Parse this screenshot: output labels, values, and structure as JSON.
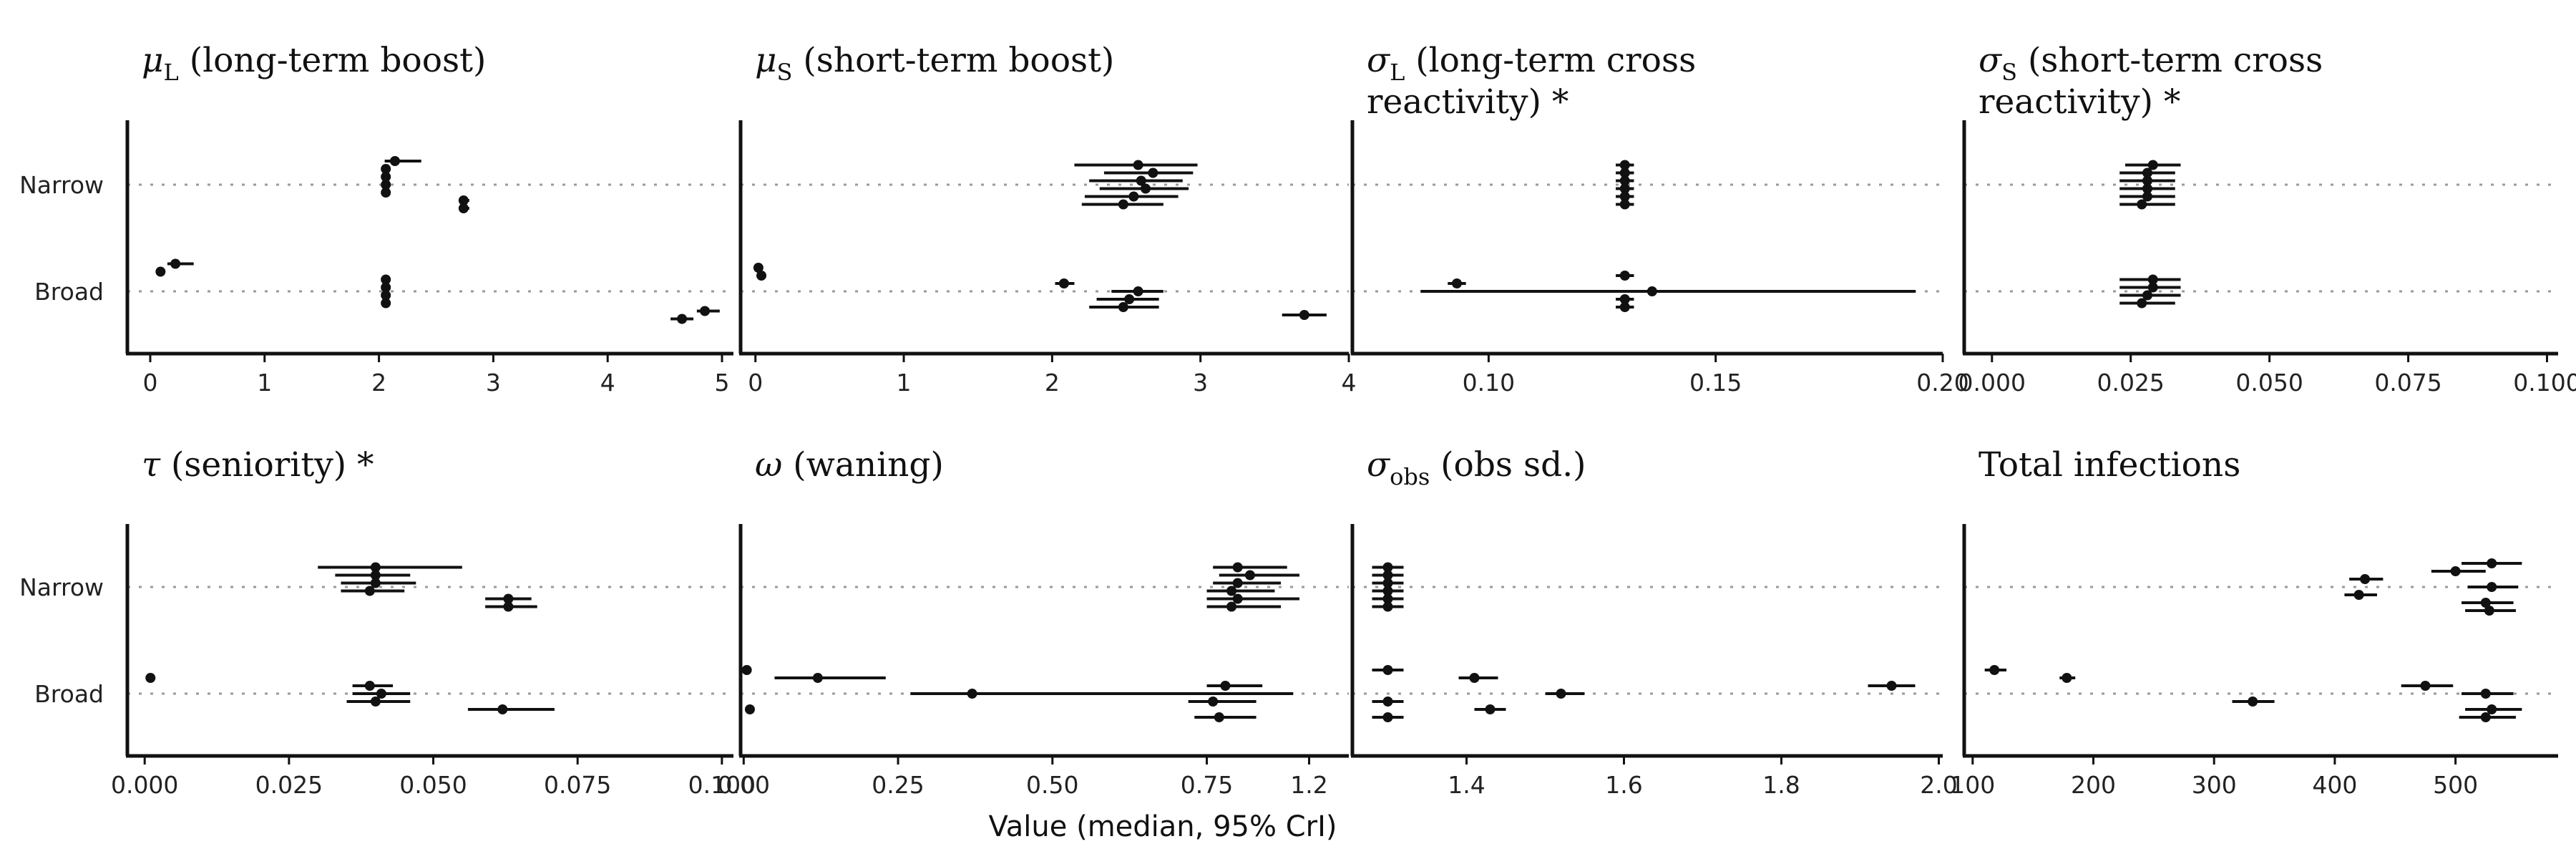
{
  "figure": {
    "xlabel": "Value (median, 95% CrI)",
    "categories": [
      "Narrow",
      "Broad"
    ]
  },
  "chart_data": [
    {
      "type": "scatter",
      "title_main": "μ",
      "title_sub": "L",
      "title_rest": " (long-term boost)",
      "title_rest2": "",
      "xlim": [
        -0.2,
        5.1
      ],
      "xticks": [
        "0",
        "1",
        "2",
        "3",
        "4",
        "5"
      ],
      "xtick_values": [
        0,
        1,
        2,
        3,
        4,
        5
      ],
      "points": [
        {
          "group": "Narrow",
          "median": 2.14,
          "lower": 2.05,
          "upper": 2.37
        },
        {
          "group": "Narrow",
          "median": 2.06,
          "lower": 2.04,
          "upper": 2.1
        },
        {
          "group": "Narrow",
          "median": 2.06,
          "lower": 2.04,
          "upper": 2.1
        },
        {
          "group": "Narrow",
          "median": 2.06,
          "lower": 2.04,
          "upper": 2.09
        },
        {
          "group": "Narrow",
          "median": 2.06,
          "lower": 2.04,
          "upper": 2.09
        },
        {
          "group": "Narrow",
          "median": 2.74,
          "lower": 2.7,
          "upper": 2.79
        },
        {
          "group": "Narrow",
          "median": 2.74,
          "lower": 2.7,
          "upper": 2.79
        },
        {
          "group": "Broad",
          "median": 0.22,
          "lower": 0.15,
          "upper": 0.38
        },
        {
          "group": "Broad",
          "median": 0.09,
          "lower": 0.08,
          "upper": 0.1
        },
        {
          "group": "Broad",
          "median": 2.06,
          "lower": 2.04,
          "upper": 2.09
        },
        {
          "group": "Broad",
          "median": 2.06,
          "lower": 2.04,
          "upper": 2.09
        },
        {
          "group": "Broad",
          "median": 2.06,
          "lower": 2.04,
          "upper": 2.09
        },
        {
          "group": "Broad",
          "median": 2.06,
          "lower": 2.04,
          "upper": 2.09
        },
        {
          "group": "Broad",
          "median": 4.85,
          "lower": 4.78,
          "upper": 4.98
        },
        {
          "group": "Broad",
          "median": 4.65,
          "lower": 4.55,
          "upper": 4.75
        }
      ]
    },
    {
      "type": "scatter",
      "title_main": "μ",
      "title_sub": "S",
      "title_rest": " (short-term boost)",
      "title_rest2": "",
      "xlim": [
        -0.1,
        4.0
      ],
      "xticks": [
        "0",
        "1",
        "2",
        "3",
        "4"
      ],
      "xtick_values": [
        0,
        1,
        2,
        3,
        4
      ],
      "points": [
        {
          "group": "Narrow",
          "median": 2.58,
          "lower": 2.15,
          "upper": 2.98
        },
        {
          "group": "Narrow",
          "median": 2.68,
          "lower": 2.35,
          "upper": 2.95
        },
        {
          "group": "Narrow",
          "median": 2.6,
          "lower": 2.25,
          "upper": 2.88
        },
        {
          "group": "Narrow",
          "median": 2.63,
          "lower": 2.32,
          "upper": 2.92
        },
        {
          "group": "Narrow",
          "median": 2.55,
          "lower": 2.22,
          "upper": 2.85
        },
        {
          "group": "Narrow",
          "median": 2.48,
          "lower": 2.2,
          "upper": 2.75
        },
        {
          "group": "Broad",
          "median": 0.02,
          "lower": 0.01,
          "upper": 0.04
        },
        {
          "group": "Broad",
          "median": 0.04,
          "lower": 0.02,
          "upper": 0.06
        },
        {
          "group": "Broad",
          "median": 2.08,
          "lower": 2.02,
          "upper": 2.15
        },
        {
          "group": "Broad",
          "median": 2.58,
          "lower": 2.4,
          "upper": 2.75
        },
        {
          "group": "Broad",
          "median": 2.52,
          "lower": 2.3,
          "upper": 2.72
        },
        {
          "group": "Broad",
          "median": 2.48,
          "lower": 2.25,
          "upper": 2.72
        },
        {
          "group": "Broad",
          "median": 3.7,
          "lower": 3.55,
          "upper": 3.85
        }
      ]
    },
    {
      "type": "scatter",
      "title_main": "σ",
      "title_sub": "L",
      "title_rest": " (long-term cross",
      "title_rest2": "reactivity) *",
      "xlim": [
        0.07,
        0.2
      ],
      "xticks": [
        "0.10",
        "0.15",
        "0.20"
      ],
      "xtick_values": [
        0.1,
        0.15,
        0.2
      ],
      "points": [
        {
          "group": "Narrow",
          "median": 0.13,
          "lower": 0.128,
          "upper": 0.132
        },
        {
          "group": "Narrow",
          "median": 0.13,
          "lower": 0.128,
          "upper": 0.132
        },
        {
          "group": "Narrow",
          "median": 0.13,
          "lower": 0.128,
          "upper": 0.132
        },
        {
          "group": "Narrow",
          "median": 0.13,
          "lower": 0.128,
          "upper": 0.132
        },
        {
          "group": "Narrow",
          "median": 0.13,
          "lower": 0.128,
          "upper": 0.132
        },
        {
          "group": "Narrow",
          "median": 0.13,
          "lower": 0.128,
          "upper": 0.132
        },
        {
          "group": "Broad",
          "median": 0.13,
          "lower": 0.128,
          "upper": 0.132
        },
        {
          "group": "Broad",
          "median": 0.093,
          "lower": 0.091,
          "upper": 0.095
        },
        {
          "group": "Broad",
          "median": 0.136,
          "lower": 0.085,
          "upper": 0.194
        },
        {
          "group": "Broad",
          "median": 0.13,
          "lower": 0.128,
          "upper": 0.132
        },
        {
          "group": "Broad",
          "median": 0.13,
          "lower": 0.128,
          "upper": 0.132
        }
      ]
    },
    {
      "type": "scatter",
      "title_main": "σ",
      "title_sub": "S",
      "title_rest": " (short-term cross",
      "title_rest2": "reactivity) *",
      "xlim": [
        -0.005,
        0.102
      ],
      "xticks": [
        "0.000",
        "0.025",
        "0.050",
        "0.075",
        "0.100"
      ],
      "xtick_values": [
        0,
        0.025,
        0.05,
        0.075,
        0.1
      ],
      "points": [
        {
          "group": "Narrow",
          "median": 0.029,
          "lower": 0.024,
          "upper": 0.034
        },
        {
          "group": "Narrow",
          "median": 0.028,
          "lower": 0.023,
          "upper": 0.033
        },
        {
          "group": "Narrow",
          "median": 0.028,
          "lower": 0.023,
          "upper": 0.033
        },
        {
          "group": "Narrow",
          "median": 0.028,
          "lower": 0.023,
          "upper": 0.033
        },
        {
          "group": "Narrow",
          "median": 0.028,
          "lower": 0.023,
          "upper": 0.033
        },
        {
          "group": "Narrow",
          "median": 0.027,
          "lower": 0.023,
          "upper": 0.033
        },
        {
          "group": "Broad",
          "median": 0.029,
          "lower": 0.023,
          "upper": 0.034
        },
        {
          "group": "Broad",
          "median": 0.029,
          "lower": 0.023,
          "upper": 0.034
        },
        {
          "group": "Broad",
          "median": 0.028,
          "lower": 0.023,
          "upper": 0.034
        },
        {
          "group": "Broad",
          "median": 0.027,
          "lower": 0.023,
          "upper": 0.033
        }
      ]
    },
    {
      "type": "scatter",
      "title_main": "τ",
      "title_sub": "",
      "title_rest": " (seniority) *",
      "title_rest2": "",
      "xlim": [
        -0.003,
        0.102
      ],
      "xticks": [
        "0.000",
        "0.025",
        "0.050",
        "0.075",
        "0.100"
      ],
      "xtick_values": [
        0,
        0.025,
        0.05,
        0.075,
        0.1
      ],
      "points": [
        {
          "group": "Narrow",
          "median": 0.04,
          "lower": 0.03,
          "upper": 0.055
        },
        {
          "group": "Narrow",
          "median": 0.04,
          "lower": 0.033,
          "upper": 0.046
        },
        {
          "group": "Narrow",
          "median": 0.04,
          "lower": 0.034,
          "upper": 0.047
        },
        {
          "group": "Narrow",
          "median": 0.039,
          "lower": 0.034,
          "upper": 0.045
        },
        {
          "group": "Narrow",
          "median": 0.063,
          "lower": 0.059,
          "upper": 0.067
        },
        {
          "group": "Narrow",
          "median": 0.063,
          "lower": 0.059,
          "upper": 0.068
        },
        {
          "group": "Broad",
          "median": 0.001,
          "lower": 0.0005,
          "upper": 0.0015
        },
        {
          "group": "Broad",
          "median": 0.039,
          "lower": 0.036,
          "upper": 0.043
        },
        {
          "group": "Broad",
          "median": 0.041,
          "lower": 0.036,
          "upper": 0.046
        },
        {
          "group": "Broad",
          "median": 0.04,
          "lower": 0.035,
          "upper": 0.046
        },
        {
          "group": "Broad",
          "median": 0.062,
          "lower": 0.056,
          "upper": 0.071
        }
      ]
    },
    {
      "type": "scatter",
      "title_main": "ω",
      "title_sub": "",
      "title_rest": " (waning)",
      "title_rest2": "",
      "xlim": [
        -0.005,
        0.98
      ],
      "xticks": [
        "0.00",
        "0.25",
        "0.50",
        "0.75"
      ],
      "xtick_values": [
        0,
        0.25,
        0.5,
        0.75
      ],
      "points": [
        {
          "group": "Narrow",
          "median": 0.8,
          "lower": 0.76,
          "upper": 0.88
        },
        {
          "group": "Narrow",
          "median": 0.82,
          "lower": 0.77,
          "upper": 0.9
        },
        {
          "group": "Narrow",
          "median": 0.8,
          "lower": 0.76,
          "upper": 0.87
        },
        {
          "group": "Narrow",
          "median": 0.79,
          "lower": 0.75,
          "upper": 0.86
        },
        {
          "group": "Narrow",
          "median": 0.8,
          "lower": 0.75,
          "upper": 0.9
        },
        {
          "group": "Narrow",
          "median": 0.79,
          "lower": 0.75,
          "upper": 0.87
        },
        {
          "group": "Broad",
          "median": 0.005,
          "lower": 0.003,
          "upper": 0.008
        },
        {
          "group": "Broad",
          "median": 0.12,
          "lower": 0.05,
          "upper": 0.23
        },
        {
          "group": "Broad",
          "median": 0.78,
          "lower": 0.75,
          "upper": 0.84
        },
        {
          "group": "Broad",
          "median": 0.37,
          "lower": 0.27,
          "upper": 0.89
        },
        {
          "group": "Broad",
          "median": 0.76,
          "lower": 0.72,
          "upper": 0.83
        },
        {
          "group": "Broad",
          "median": 0.01,
          "lower": 0.008,
          "upper": 0.013
        },
        {
          "group": "Broad",
          "median": 0.77,
          "lower": 0.73,
          "upper": 0.83
        }
      ]
    },
    {
      "type": "scatter",
      "title_main": "σ",
      "title_sub": "obs",
      "title_rest": " (obs sd.)",
      "title_rest2": "",
      "xlim": [
        1.255,
        2.005
      ],
      "xticks": [
        "1.2",
        "1.4",
        "1.6",
        "1.8",
        "2.0"
      ],
      "xtick_values": [
        1.2,
        1.4,
        1.6,
        1.8,
        2.0
      ],
      "points": [
        {
          "group": "Narrow",
          "median": 1.3,
          "lower": 1.28,
          "upper": 1.32
        },
        {
          "group": "Narrow",
          "median": 1.3,
          "lower": 1.28,
          "upper": 1.32
        },
        {
          "group": "Narrow",
          "median": 1.3,
          "lower": 1.28,
          "upper": 1.32
        },
        {
          "group": "Narrow",
          "median": 1.3,
          "lower": 1.28,
          "upper": 1.32
        },
        {
          "group": "Narrow",
          "median": 1.3,
          "lower": 1.28,
          "upper": 1.32
        },
        {
          "group": "Narrow",
          "median": 1.3,
          "lower": 1.28,
          "upper": 1.32
        },
        {
          "group": "Broad",
          "median": 1.3,
          "lower": 1.28,
          "upper": 1.32
        },
        {
          "group": "Broad",
          "median": 1.41,
          "lower": 1.39,
          "upper": 1.44
        },
        {
          "group": "Broad",
          "median": 1.94,
          "lower": 1.91,
          "upper": 1.97
        },
        {
          "group": "Broad",
          "median": 1.52,
          "lower": 1.5,
          "upper": 1.55
        },
        {
          "group": "Broad",
          "median": 1.3,
          "lower": 1.28,
          "upper": 1.32
        },
        {
          "group": "Broad",
          "median": 1.43,
          "lower": 1.41,
          "upper": 1.45
        },
        {
          "group": "Broad",
          "median": 1.3,
          "lower": 1.28,
          "upper": 1.32
        }
      ]
    },
    {
      "type": "scatter",
      "title_main": "Total infections",
      "title_sub": "",
      "title_rest": "",
      "title_rest2": "",
      "xlim": [
        93,
        585
      ],
      "xticks": [
        "100",
        "200",
        "300",
        "400",
        "500"
      ],
      "xtick_values": [
        100,
        200,
        300,
        400,
        500
      ],
      "points": [
        {
          "group": "Narrow",
          "median": 530,
          "lower": 505,
          "upper": 555
        },
        {
          "group": "Narrow",
          "median": 500,
          "lower": 480,
          "upper": 525
        },
        {
          "group": "Narrow",
          "median": 425,
          "lower": 412,
          "upper": 440
        },
        {
          "group": "Narrow",
          "median": 530,
          "lower": 510,
          "upper": 552
        },
        {
          "group": "Narrow",
          "median": 420,
          "lower": 408,
          "upper": 435
        },
        {
          "group": "Narrow",
          "median": 525,
          "lower": 505,
          "upper": 548
        },
        {
          "group": "Narrow",
          "median": 528,
          "lower": 508,
          "upper": 550
        },
        {
          "group": "Broad",
          "median": 118,
          "lower": 110,
          "upper": 128
        },
        {
          "group": "Broad",
          "median": 178,
          "lower": 172,
          "upper": 185
        },
        {
          "group": "Broad",
          "median": 475,
          "lower": 455,
          "upper": 498
        },
        {
          "group": "Broad",
          "median": 525,
          "lower": 505,
          "upper": 548
        },
        {
          "group": "Broad",
          "median": 332,
          "lower": 315,
          "upper": 350
        },
        {
          "group": "Broad",
          "median": 530,
          "lower": 508,
          "upper": 555
        },
        {
          "group": "Broad",
          "median": 525,
          "lower": 503,
          "upper": 550
        }
      ]
    }
  ]
}
